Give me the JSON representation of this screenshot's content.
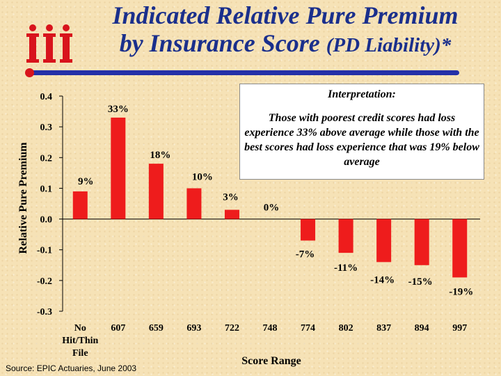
{
  "title_line1": "Indicated Relative Pure Premium",
  "title_line2_main": "by Insurance Score",
  "title_line2_paren": "(PD Liability)*",
  "interpretation": {
    "heading": "Interpretation:",
    "text": "Those with poorest credit scores had loss experience 33% above average while those with the best scores had loss experience that was 19% below average"
  },
  "source": "Source:  EPIC Actuaries, June 2003",
  "colors": {
    "bar": "#ee1c1c",
    "title": "#1a2f8c",
    "accent_line": "#2430a8",
    "logo": "#d8141c"
  },
  "logo_icon": "iii-logo-icon",
  "chart_data": {
    "type": "bar",
    "categories": [
      "No Hit/Thin File",
      "607",
      "659",
      "693",
      "722",
      "748",
      "774",
      "802",
      "837",
      "894",
      "997"
    ],
    "category_lines": [
      [
        "No",
        "Hit/Thin",
        "File"
      ],
      [
        "607"
      ],
      [
        "659"
      ],
      [
        "693"
      ],
      [
        "722"
      ],
      [
        "748"
      ],
      [
        "774"
      ],
      [
        "802"
      ],
      [
        "837"
      ],
      [
        "894"
      ],
      [
        "997"
      ]
    ],
    "values": [
      0.09,
      0.33,
      0.18,
      0.1,
      0.03,
      0.0,
      -0.07,
      -0.11,
      -0.14,
      -0.15,
      -0.19
    ],
    "labels": [
      "9%",
      "33%",
      "18%",
      "10%",
      "3%",
      "0%",
      "-7%",
      "-11%",
      "-14%",
      "-15%",
      "-19%"
    ],
    "xlabel": "Score Range",
    "ylabel": "Relative Pure Premium",
    "ylim": [
      -0.3,
      0.4
    ],
    "yticks": [
      0.4,
      0.3,
      0.2,
      0.1,
      0.0,
      -0.1,
      -0.2,
      -0.3
    ],
    "ytick_labels": [
      "0.4",
      "0.3",
      "0.2",
      "0.1",
      "0.0",
      "-0.1",
      "-0.2",
      "-0.3"
    ],
    "grid": false,
    "legend": "none"
  }
}
